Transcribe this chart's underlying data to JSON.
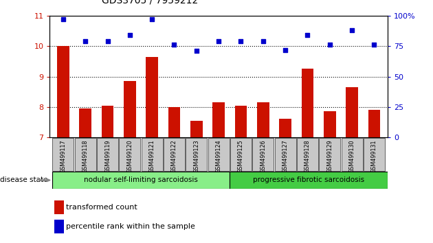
{
  "title": "GDS3705 / 7959212",
  "samples": [
    "GSM499117",
    "GSM499118",
    "GSM499119",
    "GSM499120",
    "GSM499121",
    "GSM499122",
    "GSM499123",
    "GSM499124",
    "GSM499125",
    "GSM499126",
    "GSM499127",
    "GSM499128",
    "GSM499129",
    "GSM499130",
    "GSM499131"
  ],
  "bar_values": [
    10.0,
    7.95,
    8.05,
    8.85,
    9.65,
    8.0,
    7.55,
    8.15,
    8.05,
    8.15,
    7.6,
    9.25,
    7.85,
    8.65,
    7.9
  ],
  "dot_values": [
    97,
    79,
    79,
    84,
    97,
    76,
    71,
    79,
    79,
    79,
    72,
    84,
    76,
    88,
    76
  ],
  "bar_color": "#cc1100",
  "dot_color": "#0000cc",
  "ylim_left": [
    7,
    11
  ],
  "ylim_right": [
    0,
    100
  ],
  "yticks_left": [
    7,
    8,
    9,
    10,
    11
  ],
  "yticks_right": [
    0,
    25,
    50,
    75,
    100
  ],
  "ytick_labels_right": [
    "0",
    "25",
    "50",
    "75",
    "100%"
  ],
  "grid_values": [
    8,
    9,
    10
  ],
  "group1_label": "nodular self-limiting sarcoidosis",
  "group2_label": "progressive fibrotic sarcoidosis",
  "group1_count": 8,
  "group2_count": 7,
  "disease_state_label": "disease state",
  "legend_bar_label": "transformed count",
  "legend_dot_label": "percentile rank within the sample",
  "group1_color": "#88ee88",
  "group2_color": "#44cc44",
  "xlabel_bg": "#c8c8c8",
  "bg_color": "#ffffff"
}
